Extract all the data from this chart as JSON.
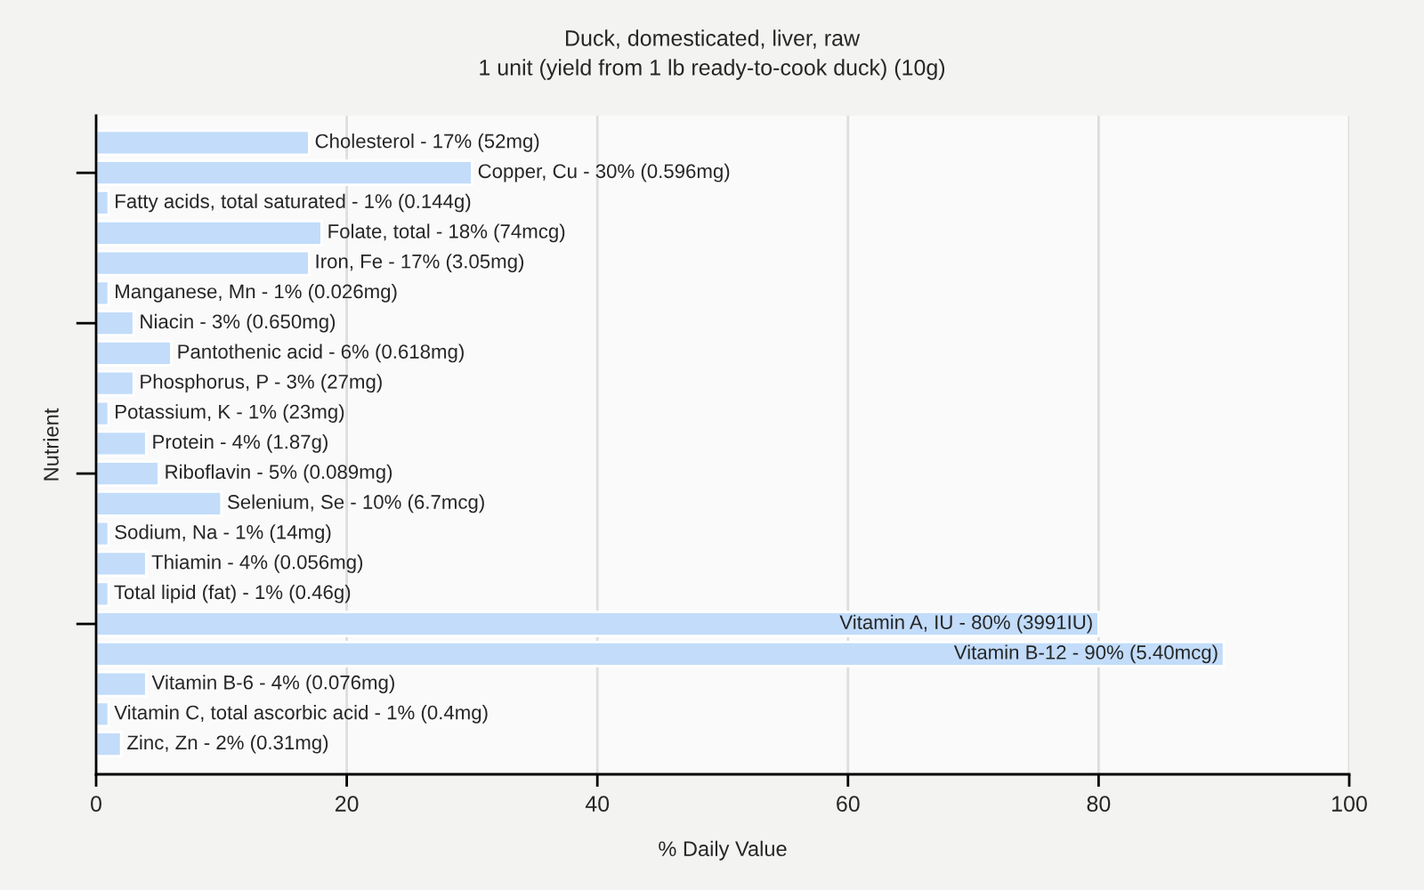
{
  "chart_data": {
    "type": "bar",
    "orientation": "horizontal",
    "title": "Duck, domesticated, liver, raw",
    "subtitle": "1 unit (yield from 1 lb ready-to-cook duck) (10g)",
    "xlabel": "% Daily Value",
    "ylabel": "Nutrient",
    "categories": [
      "Cholesterol - 17% (52mg)",
      "Copper, Cu - 30% (0.596mg)",
      "Fatty acids, total saturated - 1% (0.144g)",
      "Folate, total - 18% (74mcg)",
      "Iron, Fe - 17% (3.05mg)",
      "Manganese, Mn - 1% (0.026mg)",
      "Niacin - 3% (0.650mg)",
      "Pantothenic acid - 6% (0.618mg)",
      "Phosphorus, P - 3% (27mg)",
      "Potassium, K - 1% (23mg)",
      "Protein - 4% (1.87g)",
      "Riboflavin - 5% (0.089mg)",
      "Selenium, Se - 10% (6.7mcg)",
      "Sodium, Na - 1% (14mg)",
      "Thiamin - 4% (0.056mg)",
      "Total lipid (fat) - 1% (0.46g)",
      "Vitamin A, IU - 80% (3991IU)",
      "Vitamin B-12 - 90% (5.40mcg)",
      "Vitamin B-6 - 4% (0.076mg)",
      "Vitamin C, total ascorbic acid - 1% (0.4mg)",
      "Zinc, Zn - 2% (0.31mg)"
    ],
    "values": [
      17,
      30,
      1,
      18,
      17,
      1,
      3,
      6,
      3,
      1,
      4,
      5,
      10,
      1,
      4,
      1,
      80,
      90,
      4,
      1,
      2
    ],
    "color": "#c2dcfa",
    "xlim": [
      0,
      100
    ],
    "xticks": [
      0,
      20,
      40,
      60,
      80,
      100
    ],
    "grid": "x"
  }
}
